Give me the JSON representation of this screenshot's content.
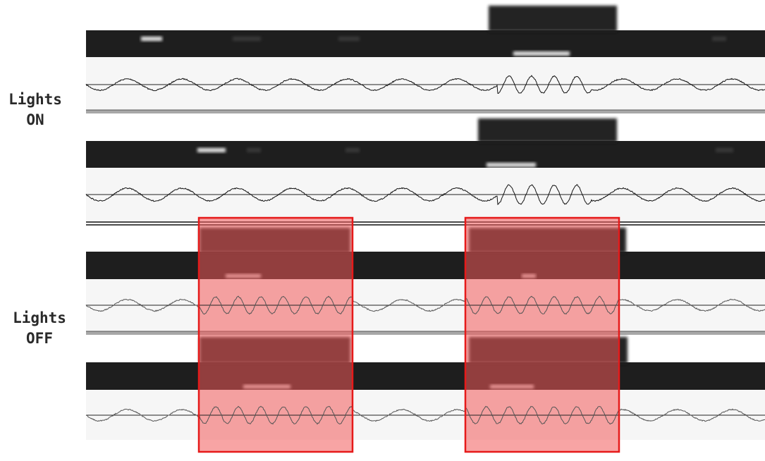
{
  "labels": {
    "lights_on": [
      "Lights",
      "ON"
    ],
    "lights_off": [
      "Lights",
      "OFF"
    ]
  },
  "colors": {
    "strip_dark": "#1e1e1e",
    "signal_panel": "#f6f6f6",
    "signal_line_on": "#111111",
    "signal_line_off": "#555555",
    "highlight_border": "#e61a1a",
    "highlight_fill": "#f25a5a"
  },
  "conditions": [
    {
      "name": "lights-on",
      "traces": [
        {
          "name": "trace-1",
          "waveform": "dense-oscillation-middle",
          "separator": "single-gray"
        },
        {
          "name": "trace-2",
          "waveform": "dense-oscillation-middle",
          "separator": "double-black"
        }
      ]
    },
    {
      "name": "lights-off",
      "traces": [
        {
          "name": "trace-3",
          "waveform": "dense-oscillation-in-highlights",
          "separator": "single-gray"
        },
        {
          "name": "trace-4",
          "waveform": "dense-oscillation-in-highlights",
          "separator": "none"
        }
      ],
      "highlighted_regions": 2
    }
  ]
}
